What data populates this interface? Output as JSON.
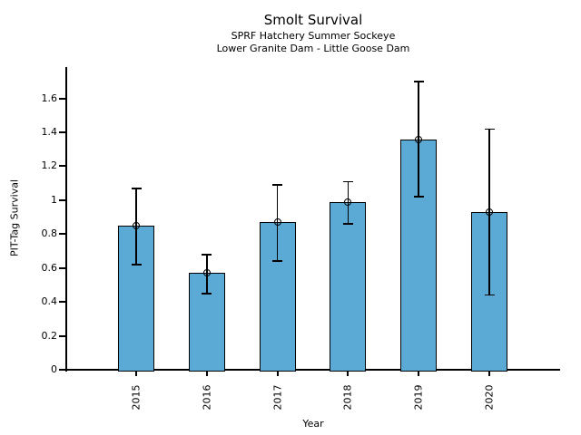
{
  "chart_data": {
    "type": "bar",
    "title": "Smolt Survival",
    "subtitle1": "SPRF Hatchery Summer Sockeye",
    "subtitle2": "Lower Granite Dam - Little Goose Dam",
    "xlabel": "Year",
    "ylabel": "PIT-Tag Survival",
    "categories": [
      "2015",
      "2016",
      "2017",
      "2018",
      "2019",
      "2020"
    ],
    "values": [
      0.85,
      0.57,
      0.87,
      0.99,
      1.36,
      0.93
    ],
    "error_low": [
      0.62,
      0.45,
      0.64,
      0.86,
      1.02,
      0.44
    ],
    "error_high": [
      1.07,
      0.68,
      1.09,
      1.11,
      1.7,
      1.42
    ],
    "ylim": [
      0,
      1.785
    ],
    "yticks": [
      0,
      0.2,
      0.4,
      0.6,
      0.8,
      1,
      1.2,
      1.4,
      1.6
    ],
    "ytick_labels": [
      "0",
      "0.2",
      "0.4",
      "0.6",
      "0.8",
      "1",
      "1.2",
      "1.4",
      "1.6"
    ],
    "bar_color": "#5BA9D5",
    "bar_edge_color": "#000000",
    "axis_color": "#000000",
    "grid": false,
    "legend": false,
    "marker": "open-circle"
  }
}
